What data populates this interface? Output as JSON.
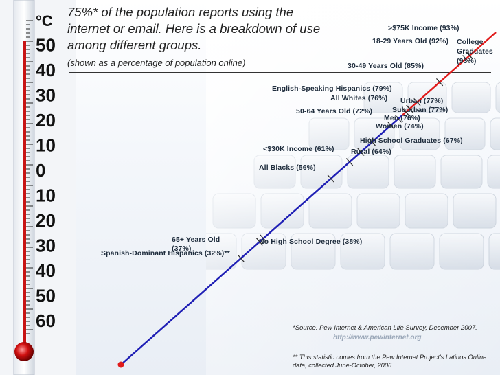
{
  "title": "75%* of the population reports using the internet or email. Here is a breakdown of use among different groups.",
  "subtitle": "(shown as a percentage of population online)",
  "source": "*Source: Pew Internet & American Life Survey, December 2007.",
  "url": "http://www.pewinternet.org",
  "footnote": "** This statistic comes from the Pew Internet Project's Latinos Online data, collected June-October, 2006.",
  "colors": {
    "below_average": "#1f1fb5",
    "above_average": "#e01b1b",
    "tick": "#2a2a2a"
  },
  "thermometer_scale_labels": [
    "°C",
    "50",
    "40",
    "30",
    "20",
    "10",
    "0",
    "10",
    "20",
    "30",
    "40",
    "50",
    "60"
  ],
  "chart_data": {
    "type": "line",
    "description_scale": "percentage of population online",
    "average": 75,
    "groups": [
      {
        "label": "Spanish-Dominant Hispanics (32%)**",
        "value": 32
      },
      {
        "label": "65+ Years Old (37%)",
        "value": 37
      },
      {
        "label": "No High School Degree (38%)",
        "value": 38
      },
      {
        "label": "All Blacks (56%)",
        "value": 56
      },
      {
        "label": "<$30K Income (61%)",
        "value": 61
      },
      {
        "label": "Rural (64%)",
        "value": 64
      },
      {
        "label": "High School Graduates (67%)",
        "value": 67
      },
      {
        "label": "50-64 Years Old (72%)",
        "value": 72
      },
      {
        "label": "Women (74%)",
        "value": 74
      },
      {
        "label": "Men (76%)",
        "value": 76
      },
      {
        "label": "All Whites (76%)",
        "value": 76
      },
      {
        "label": "Suburban (77%)",
        "value": 77
      },
      {
        "label": "Urban (77%)",
        "value": 77
      },
      {
        "label": "English-Speaking Hispanics (79%)",
        "value": 79
      },
      {
        "label": "30-49 Years Old (85%)",
        "value": 85
      },
      {
        "label": "18-29 Years Old (92%)",
        "value": 92
      },
      {
        "label": ">$75K Income (93%)",
        "value": 93
      },
      {
        "label": "College Graduates (93%)",
        "value": 93
      }
    ]
  }
}
